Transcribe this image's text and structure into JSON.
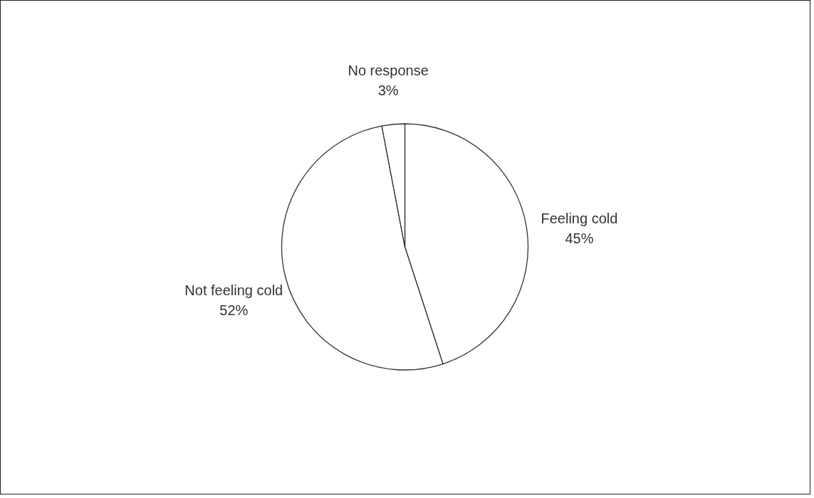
{
  "chart_data": {
    "type": "pie",
    "categories": [
      "Feeling cold",
      "Not feeling cold",
      "No response"
    ],
    "values": [
      45,
      52,
      3
    ],
    "colors": [
      "#ffffff",
      "#ffffff",
      "#ffffff"
    ],
    "value_labels": [
      "45%",
      "52%",
      "3%"
    ]
  }
}
